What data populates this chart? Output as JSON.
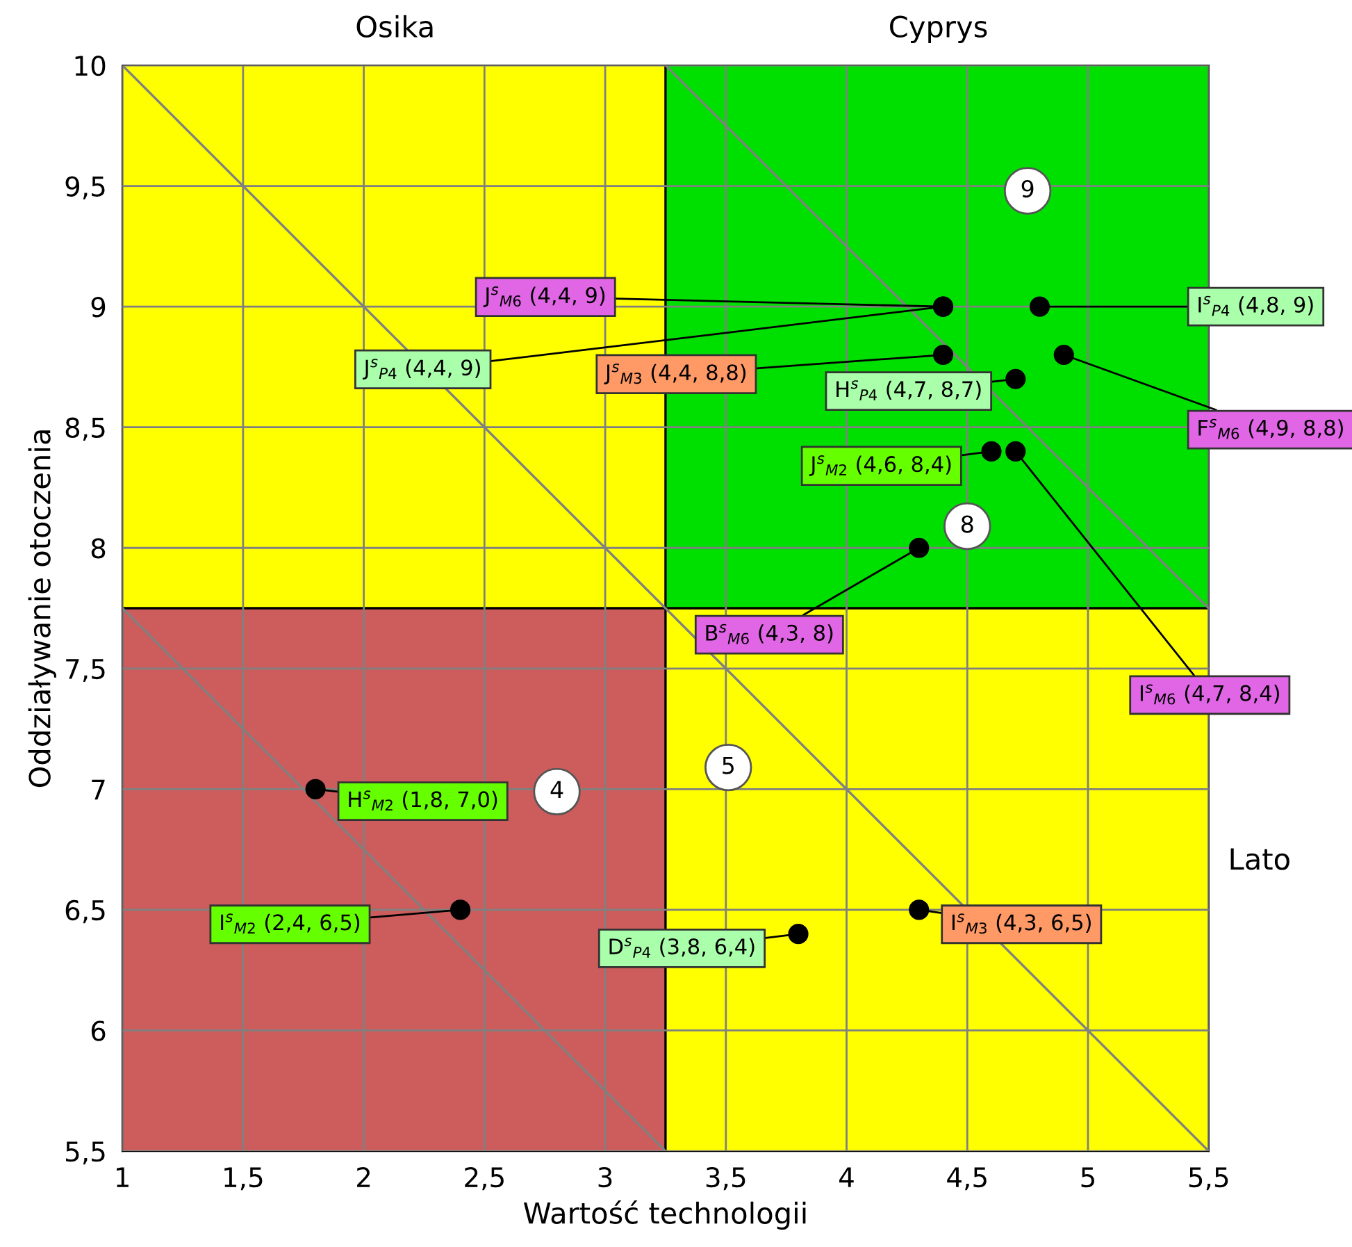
{
  "chart_data": {
    "type": "scatter",
    "xlabel": "Wartość technologii",
    "ylabel": "Oddziaływanie otoczenia",
    "annotations": [
      "Osika",
      "Cyprys",
      "Lato",
      "9",
      "8",
      "4",
      "5"
    ],
    "series": [
      {
        "marker": "circle",
        "color": "#000000",
        "x": [
          4.4,
          4.8,
          4.4,
          4.4,
          4.7,
          4.9,
          4.6,
          4.7,
          4.3,
          1.8,
          2.4,
          3.8,
          4.3
        ],
        "values": [
          9,
          9,
          9,
          8.8,
          8.7,
          8.8,
          8.4,
          8.4,
          8,
          7.0,
          6.5,
          6.4,
          6.5
        ],
        "value_labels": [
          "J$^{s}$$_{M6}$ (4,4, 9)",
          "I$^{s}$$_{P4}$ (4,8, 9)",
          "J$^{s}$$_{P4}$ (4,4, 9)",
          "J$^{s}$$_{M3}$ (4,4, 8,8)",
          "H$^{s}$$_{P4}$ (4,7, 8,7)",
          "F$^{s}$$_{M6}$ (4,9, 8,8)",
          "J$^{s}$$_{M2}$ (4,6, 8,4)",
          "I$^{s}$$_{M6}$ (4,7, 8,4)",
          "B$^{s}$$_{M6}$ (4,3, 8)",
          "H$^{s}$$_{M2}$ (1,8, 7,0)",
          "I$^{s}$$_{M2}$ (2,4, 6,5)",
          "D$^{s}$$_{P4}$ (3,8, 6,4)",
          "I$^{s}$$_{M3}$ (4,3, 6,5)"
        ]
      },
      {
        "type": "line",
        "marker": "none",
        "color": "#808080",
        "x": [
          1,
          5.5
        ],
        "values": [
          10,
          5.5
        ]
      },
      {
        "type": "line",
        "marker": "none",
        "color": "#808080",
        "x": [
          3.25,
          5.5
        ],
        "values": [
          10,
          7.75
        ]
      },
      {
        "type": "line",
        "marker": "none",
        "color": "#808080",
        "x": [
          1,
          3.25
        ],
        "values": [
          7.75,
          5.5
        ]
      }
    ],
    "ref_lines": [
      {
        "axis": "x",
        "value": 3.25,
        "color": "#000000"
      },
      {
        "axis": "y",
        "value": 7.75,
        "color": "#000000"
      }
    ],
    "xlim": [
      1,
      5.5
    ],
    "xticks": [
      1,
      {
        "value": 1.5,
        "label": "1,5"
      },
      2,
      {
        "value": 2.5,
        "label": "2,5"
      },
      3,
      {
        "value": 3.5,
        "label": "3,5"
      },
      4,
      {
        "value": 4.5,
        "label": "4,5"
      },
      5,
      {
        "value": 5.5,
        "label": "5,5"
      }
    ],
    "ylim": [
      5.5,
      10
    ],
    "yticks": [
      {
        "value": 5.5,
        "label": "5,5"
      },
      6,
      {
        "value": 6.5,
        "label": "6,5"
      },
      7,
      {
        "value": 7.5,
        "label": "7,5"
      },
      8,
      {
        "value": 8.5,
        "label": "8,5"
      },
      9,
      {
        "value": 9.5,
        "label": "9,5"
      },
      10
    ],
    "grid": true
  }
}
